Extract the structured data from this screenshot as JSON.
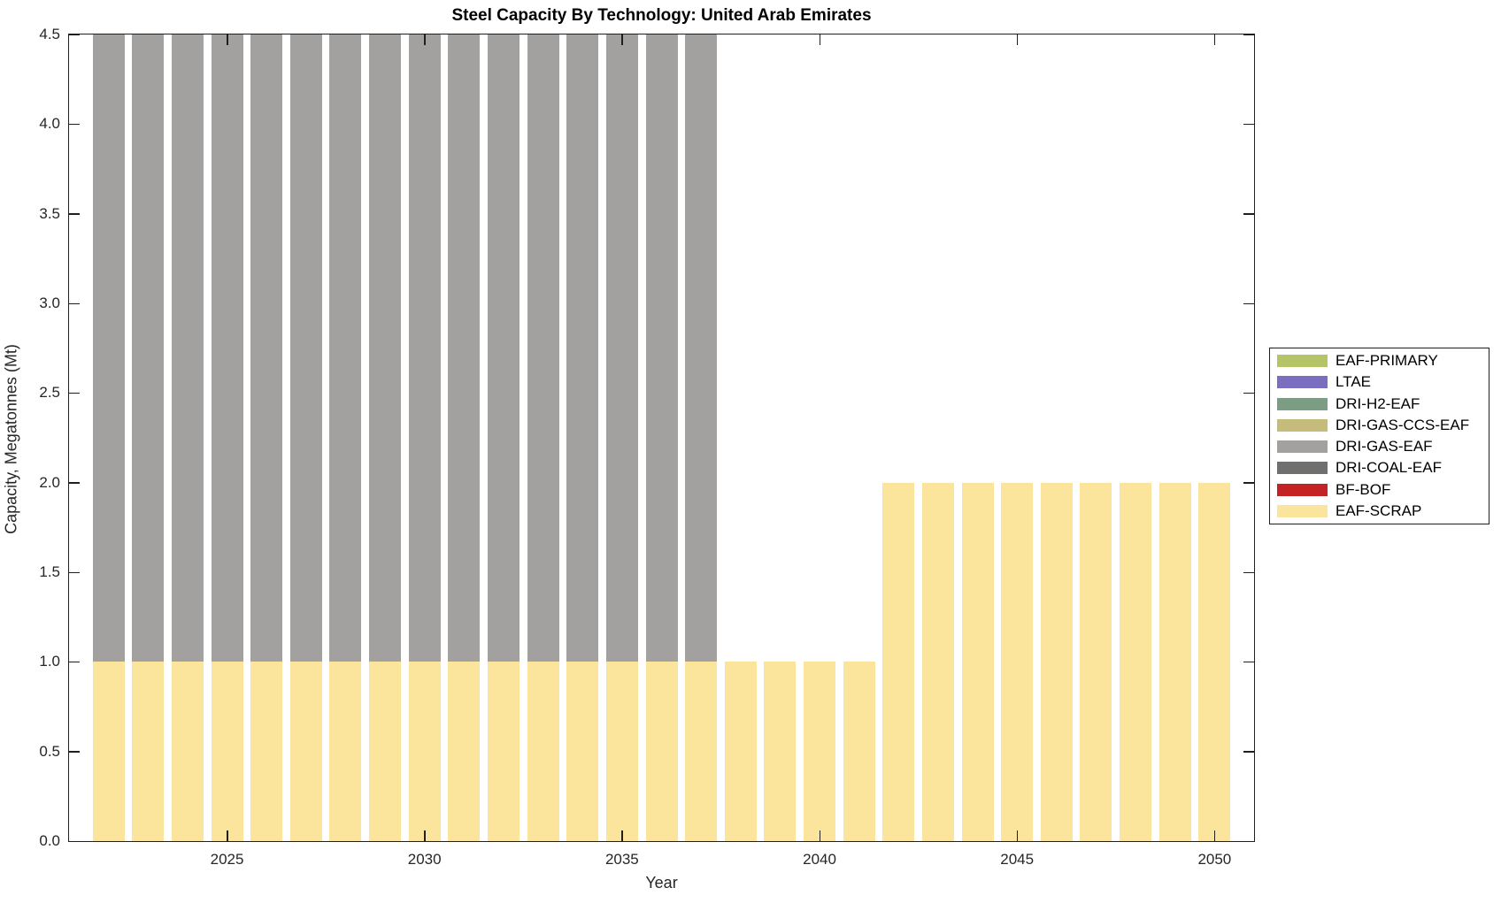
{
  "chart_data": {
    "type": "bar",
    "stacked": true,
    "title": "Steel Capacity By Technology: United Arab Emirates",
    "xlabel": "Year",
    "ylabel": "Capacity, Megatonnes (Mt)",
    "xlim": [
      2021,
      2051
    ],
    "ylim": [
      0,
      4.5
    ],
    "grid": false,
    "axis_color": "#1f1f1f",
    "bar_width_years": 0.8,
    "xticks": [
      2025,
      2030,
      2035,
      2040,
      2045,
      2050
    ],
    "yticks": [
      {
        "value": 0.0,
        "label": "0.0"
      },
      {
        "value": 0.5,
        "label": "0.5"
      },
      {
        "value": 1.0,
        "label": "1.0"
      },
      {
        "value": 1.5,
        "label": "1.5"
      },
      {
        "value": 2.0,
        "label": "2.0"
      },
      {
        "value": 2.5,
        "label": "2.5"
      },
      {
        "value": 3.0,
        "label": "3.0"
      },
      {
        "value": 3.5,
        "label": "3.5"
      },
      {
        "value": 4.0,
        "label": "4.0"
      },
      {
        "value": 4.5,
        "label": "4.5"
      }
    ],
    "years": [
      2022,
      2023,
      2024,
      2025,
      2026,
      2027,
      2028,
      2029,
      2030,
      2031,
      2032,
      2033,
      2034,
      2035,
      2036,
      2037,
      2038,
      2039,
      2040,
      2041,
      2042,
      2043,
      2044,
      2045,
      2046,
      2047,
      2048,
      2049,
      2050
    ],
    "series": [
      {
        "name": "EAF-SCRAP",
        "color": "#fbe49c",
        "values": [
          1,
          1,
          1,
          1,
          1,
          1,
          1,
          1,
          1,
          1,
          1,
          1,
          1,
          1,
          1,
          1,
          1,
          1,
          1,
          1,
          2,
          2,
          2,
          2,
          2,
          2,
          2,
          2,
          2
        ]
      },
      {
        "name": "DRI-GAS-EAF",
        "color": "#a2a19f",
        "values": [
          3.5,
          3.5,
          3.5,
          3.5,
          3.5,
          3.5,
          3.5,
          3.5,
          3.5,
          3.5,
          3.5,
          3.5,
          3.5,
          3.5,
          3.5,
          3.5,
          0,
          0,
          0,
          0,
          0,
          0,
          0,
          0,
          0,
          0,
          0,
          0,
          0
        ]
      }
    ],
    "legend": {
      "position": "right-outside",
      "entries": [
        {
          "label": "EAF-PRIMARY",
          "color": "#b4c466"
        },
        {
          "label": "LTAE",
          "color": "#7a6ec1"
        },
        {
          "label": "DRI-H2-EAF",
          "color": "#7a9d84"
        },
        {
          "label": "DRI-GAS-CCS-EAF",
          "color": "#c5bc7c"
        },
        {
          "label": "DRI-GAS-EAF",
          "color": "#a2a19f"
        },
        {
          "label": "DRI-COAL-EAF",
          "color": "#706f6d"
        },
        {
          "label": "BF-BOF",
          "color": "#c52323"
        },
        {
          "label": "EAF-SCRAP",
          "color": "#fbe49c"
        }
      ]
    }
  }
}
